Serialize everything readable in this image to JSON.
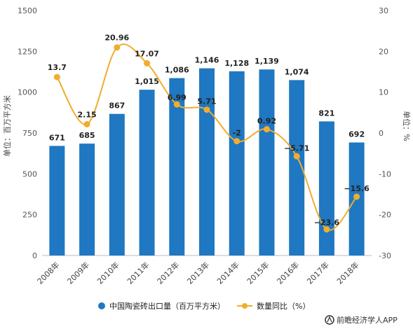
{
  "chart_data": {
    "type": "bar+line",
    "categories": [
      "2008年",
      "2009年",
      "2010年",
      "2011年",
      "2012年",
      "2013年",
      "2014年",
      "2015年",
      "2016年",
      "2017年",
      "2018年"
    ],
    "series": [
      {
        "name": "中国陶瓷砖出口量（百万平方米）",
        "type": "bar",
        "axis": "left",
        "color": "#1f78c1",
        "values": [
          671,
          685,
          867,
          1015,
          1086,
          1146,
          1128,
          1139,
          1074,
          821,
          692
        ],
        "labels": [
          "671",
          "685",
          "867",
          "1,015",
          "1,086",
          "1,146",
          "1,128",
          "1,139",
          "1,074",
          "821",
          "692"
        ]
      },
      {
        "name": "数量同比（%）",
        "type": "line",
        "axis": "right",
        "color": "#f0ad2e",
        "values": [
          13.7,
          2.15,
          20.96,
          17.07,
          6.99,
          5.71,
          -2,
          0.92,
          -5.71,
          -23.6,
          -15.6
        ],
        "labels": [
          "13.7",
          "2.15",
          "20.96",
          "17.07",
          "6.99",
          "5.71",
          "-2",
          "0.92",
          "−5.71",
          "−23.6",
          "−15.6"
        ]
      }
    ],
    "ylabel_left": "单位：百万平方米",
    "ylabel_right": "单位：%",
    "ylim_left": [
      0,
      1500
    ],
    "yticks_left": [
      "0",
      "250",
      "500",
      "750",
      "1000",
      "1250",
      "1500"
    ],
    "ylim_right": [
      -30,
      30
    ],
    "yticks_right": [
      "-30",
      "-20",
      "-10",
      "0",
      "10",
      "20",
      "30"
    ],
    "grid": false,
    "legend_position": "bottom"
  },
  "watermark": "前瞻经济学人APP"
}
